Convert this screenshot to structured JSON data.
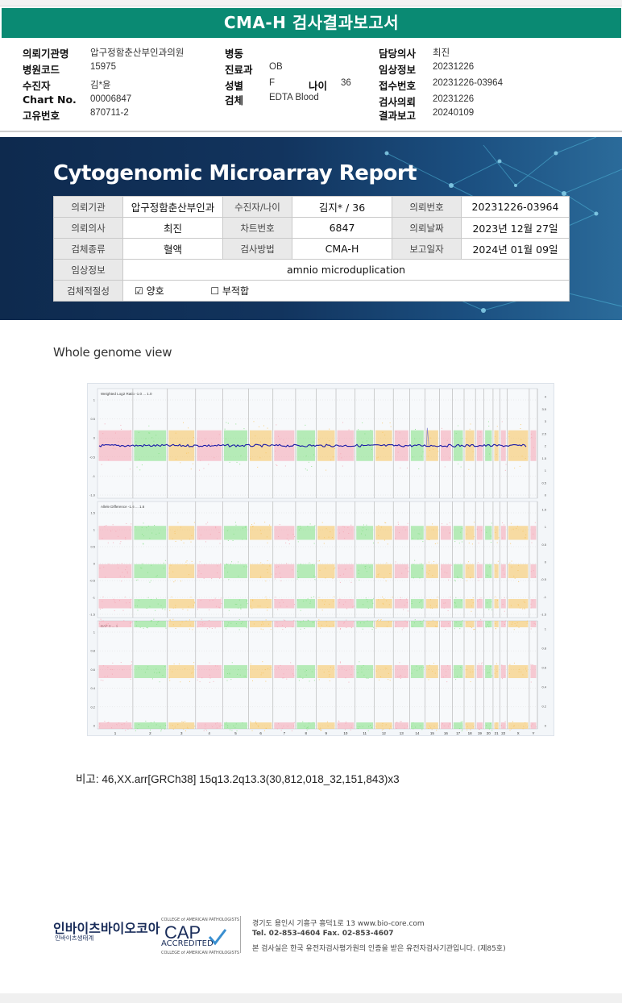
{
  "header": {
    "title": "CMA-H 검사결과보고서"
  },
  "info": {
    "institution_label": "의뢰기관명",
    "institution": "압구정함춘산부인과의원",
    "hospital_code_label": "병원코드",
    "hospital_code": "15975",
    "patient_label": "수진자",
    "patient": "김*윤",
    "chart_label": "Chart No.",
    "chart": "00006847",
    "unique_label": "고유번호",
    "unique": "870711-2",
    "ward_label": "병동",
    "ward": "",
    "dept_label": "진료과",
    "dept": "OB",
    "sex_label": "성별",
    "sex": "F",
    "age_label": "나이",
    "age": "36",
    "specimen_label": "검체",
    "specimen": "EDTA Blood",
    "doctor_label": "담당의사",
    "doctor": "최진",
    "clinical_label": "임상정보",
    "clinical": "20231226",
    "receipt_label": "접수번호",
    "receipt": "20231226-03964",
    "request_label": "검사의뢰",
    "request": "20231226",
    "result_label": "결과보고",
    "result": "20240109"
  },
  "banner": {
    "title": "Cytogenomic Microarray Report",
    "rows": [
      [
        "의뢰기관",
        "압구정함춘산부인과",
        "수진자/나이",
        "김지* / 36",
        "의뢰번호",
        "20231226-03964"
      ],
      [
        "의뢰의사",
        "최진",
        "차트번호",
        "6847",
        "의뢰날짜",
        "2023년 12월 27일"
      ],
      [
        "검체종류",
        "혈액",
        "검사방법",
        "CMA-H",
        "보고일자",
        "2024년 01월 09일"
      ]
    ],
    "clinical_label": "임상정보",
    "clinical_value": "amnio microduplication",
    "adequacy_label": "검체적절성",
    "adequacy_good": "☑ 양호",
    "adequacy_bad": "☐ 부적합"
  },
  "section_title": "Whole genome view",
  "plot": {
    "panel1_label": "Weighted Log2 Ratio  -1.0 ... 1.0",
    "panel2_label": "Allele Difference  -1.6 ... 1.6",
    "panel3_label": "BAF  0 ... 1",
    "p1_left_ticks": [
      "1",
      "0.5",
      "0",
      "-0.5",
      "-1",
      "-1.0"
    ],
    "p1_right_ticks": [
      "4",
      "3.5",
      "3",
      "2.5",
      "2",
      "1.5",
      "1",
      "0.5",
      "0"
    ],
    "p2_left_ticks": [
      "1.5",
      "1",
      "0.5",
      "0",
      "-0.5",
      "-1",
      "-1.5"
    ],
    "p2_right_ticks": [
      "1.5",
      "1",
      "0.5",
      "0",
      "-0.5",
      "-1",
      "-1.5"
    ],
    "p3_left_ticks": [
      "1",
      "0.8",
      "0.6",
      "0.4",
      "0.2",
      "0"
    ],
    "p3_right_ticks": [
      "1",
      "0.8",
      "0.6",
      "0.4",
      "0.2",
      "0"
    ],
    "chromosomes": [
      "1",
      "2",
      "3",
      "4",
      "5",
      "6",
      "7",
      "8",
      "9",
      "10",
      "11",
      "12",
      "13",
      "14",
      "15",
      "16",
      "17",
      "18",
      "19",
      "20",
      "21",
      "22",
      "X",
      "Y"
    ],
    "chrom_sizes": [
      248,
      242,
      198,
      190,
      181,
      171,
      159,
      145,
      138,
      134,
      135,
      133,
      114,
      107,
      102,
      90,
      83,
      80,
      59,
      64,
      47,
      51,
      156,
      57
    ],
    "colors": {
      "pink": "#f5a3b0",
      "green": "#7fe07f",
      "orange": "#f7c25a",
      "blue": "#1a1aa8",
      "grid": "#b0b0b0"
    }
  },
  "remark": "비고: 46,XX.arr[GRCh38] 15q13.2q13.3(30,812,018_32,151,843)x3",
  "footer": {
    "logo": "인바이츠바이오코아",
    "logo_sub": "인바이츠생태계",
    "cap_top": "COLLEGE of AMERICAN PATHOLOGISTS",
    "cap_big": "CAP",
    "cap_acc": "ACCREDITED",
    "cap_bot": "COLLEGE of AMERICAN PATHOLOGISTS",
    "address": "경기도 용인시 기흥구 흥덕1로 13    www.bio-core.com",
    "tel": "Tel. 02-853-4604   Fax. 02-853-4607",
    "note": "본 검사실은 한국 유전자검사평가원의 인증을 받은 유전자검사기관입니다. (제85호)"
  }
}
